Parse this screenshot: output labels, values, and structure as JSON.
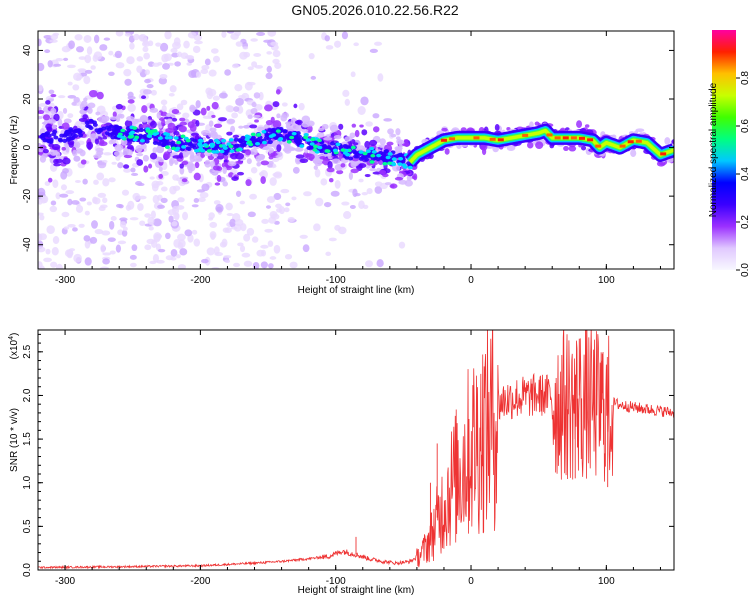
{
  "title": "GN05.2026.010.22.56.R22",
  "chart_data": [
    {
      "type": "heatmap",
      "title": "GN05.2026.010.22.56.R22",
      "xlabel": "Height of straight line (km)",
      "ylabel": "Frequency (Hz)",
      "xlim": [
        -320,
        150
      ],
      "ylim": [
        -50,
        48
      ],
      "xticks": [
        -300,
        -200,
        -100,
        0,
        100
      ],
      "yticks": [
        -40,
        -20,
        0,
        20,
        40
      ],
      "colorbar": {
        "label": "Normalized spectral amplitude",
        "range": [
          0.0,
          1.0
        ],
        "ticks": [
          "0.0",
          "0.2",
          "0.4",
          "0.6",
          "0.8"
        ],
        "colors": [
          "#f8f8ff",
          "#e0c8ff",
          "#9b30ff",
          "#3a00ff",
          "#0000ff",
          "#00c8ff",
          "#00ff80",
          "#40ff00",
          "#c8ff00",
          "#ffc000",
          "#ff2000",
          "#ff00a0"
        ]
      },
      "ridge": {
        "x": [
          -320,
          -300,
          -280,
          -260,
          -240,
          -220,
          -200,
          -180,
          -160,
          -140,
          -120,
          -100,
          -80,
          -60,
          -45,
          -40,
          -30,
          -20,
          -10,
          0,
          10,
          20,
          30,
          40,
          50,
          55,
          60,
          70,
          80,
          90,
          95,
          100,
          110,
          120,
          130,
          140,
          150
        ],
        "y": [
          4,
          5,
          9,
          6,
          5,
          2,
          1,
          0,
          3,
          6,
          2,
          -1,
          -3,
          -4,
          -6,
          -3,
          0,
          3,
          4,
          4,
          4,
          3,
          4,
          5,
          6,
          7,
          4,
          4,
          4,
          3,
          0,
          2,
          0,
          3,
          2,
          -3,
          -1
        ]
      }
    },
    {
      "type": "line",
      "xlabel": "Height of straight line (km)",
      "ylabel": "SNR (10 * v/v)",
      "yunit_label": "(x10",
      "yunit_exp": "4",
      "yunit_close": ")",
      "xlim": [
        -320,
        150
      ],
      "ylim": [
        0.0,
        2.75
      ],
      "xticks": [
        -300,
        -200,
        -100,
        0,
        100
      ],
      "yticks": [
        "0.0",
        "0.5",
        "1.0",
        "1.5",
        "2.0",
        "2.5"
      ],
      "color": "#ee3333",
      "envelope": {
        "x": [
          -320,
          -250,
          -200,
          -160,
          -140,
          -120,
          -105,
          -95,
          -85,
          -75,
          -65,
          -55,
          -45,
          -40,
          -35,
          -30,
          -25,
          -20,
          -15,
          -10,
          -5,
          0,
          5,
          10,
          15,
          20,
          25,
          30,
          35,
          40,
          45,
          50,
          55,
          60,
          65,
          70,
          75,
          80,
          85,
          90,
          95,
          100,
          105,
          110,
          120,
          130,
          140,
          150
        ],
        "y": [
          0.03,
          0.04,
          0.05,
          0.08,
          0.1,
          0.13,
          0.16,
          0.22,
          0.18,
          0.13,
          0.1,
          0.08,
          0.1,
          0.15,
          0.24,
          0.4,
          0.6,
          0.82,
          1.02,
          1.18,
          1.35,
          1.5,
          1.62,
          1.74,
          1.84,
          1.92,
          1.97,
          1.99,
          2.0,
          2.01,
          2.02,
          2.03,
          2.03,
          2.02,
          2.01,
          2.0,
          1.99,
          2.0,
          1.99,
          1.98,
          1.96,
          1.94,
          1.92,
          1.9,
          1.87,
          1.85,
          1.83,
          1.81
        ]
      },
      "spikes": [
        {
          "x": -85,
          "y": 0.38
        },
        {
          "x": -30,
          "y": 1.0
        },
        {
          "x": -25,
          "y": 1.45
        },
        {
          "x": 77,
          "y": 1.05
        },
        {
          "x": 80,
          "y": 2.65
        },
        {
          "x": 97,
          "y": 2.48
        },
        {
          "x": 101,
          "y": 0.95
        }
      ]
    }
  ]
}
